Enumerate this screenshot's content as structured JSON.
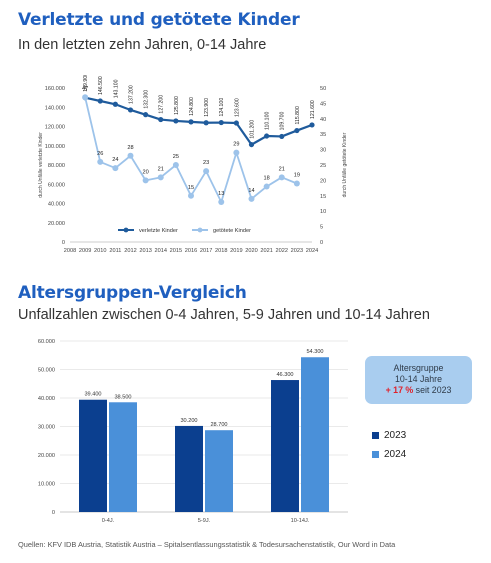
{
  "section1": {
    "title": "Verletzte und getötete Kinder",
    "subtitle": "In den letzten zehn Jahren, 0-14 Jahre"
  },
  "section2": {
    "title": "Altersgruppen-Vergleich",
    "subtitle": "Unfallzahlen zwischen 0-4 Jahren, 5-9 Jahren und 10-14 Jahren"
  },
  "infobox": {
    "line1": "Altersgruppe",
    "line2": "10-14 Jahre",
    "highlight": "+ 17 %",
    "line3_rest": " seit 2023"
  },
  "source": "Quellen: KFV IDB Austria, Statistik Austria – Spitalsentlassungsstatistik & Todesursachenstatistik, Our Word in Data",
  "chart_data": [
    {
      "type": "line",
      "x": [
        2009,
        2010,
        2011,
        2012,
        2013,
        2014,
        2015,
        2016,
        2017,
        2018,
        2019,
        2020,
        2021,
        2022,
        2023,
        2024
      ],
      "xticks": [
        "2008",
        "2009",
        "2010",
        "2011",
        "2012",
        "2013",
        "2014",
        "2015",
        "2016",
        "2017",
        "2018",
        "2019",
        "2020",
        "2021",
        "2022",
        "2023",
        "2024"
      ],
      "xlim": [
        2008,
        2024
      ],
      "ylabel_left": "durch Unfälle verletzte Kinder",
      "ylabel_right": "durch Unfälle getötete Kinder",
      "ylim_left": [
        0,
        160000
      ],
      "yticks_left": [
        "0",
        "20.000",
        "40.000",
        "60.000",
        "80.000",
        "100.000",
        "120.000",
        "140.000",
        "160.000"
      ],
      "ylim_right": [
        0,
        50
      ],
      "yticks_right": [
        "0",
        "5",
        "10",
        "15",
        "20",
        "25",
        "30",
        "35",
        "40",
        "45",
        "50"
      ],
      "series": [
        {
          "name": "verletzte Kinder",
          "axis": "left",
          "color": "#1f5b9c",
          "values": [
            149900,
            146500,
            143100,
            137200,
            132300,
            127200,
            125800,
            124800,
            123900,
            124100,
            123600,
            101200,
            110100,
            109700,
            115800,
            121600
          ],
          "labels": [
            "149.900",
            "146.500",
            "143.100",
            "137.200",
            "132.300",
            "127.200",
            "125.800",
            "124.800",
            "123.900",
            "124.100",
            "123.600",
            "101.200",
            "110.100",
            "109.700",
            "115.800",
            "121.600"
          ]
        },
        {
          "name": "getötete Kinder",
          "axis": "right",
          "color": "#9dc3ea",
          "values": [
            47,
            26,
            24,
            28,
            20,
            21,
            25,
            15,
            23,
            13,
            29,
            14,
            18,
            21,
            19,
            null
          ],
          "labels": [
            "47",
            "26",
            "24",
            "28",
            "20",
            "21",
            "25",
            "15",
            "23",
            "13",
            "29",
            "14",
            "18",
            "21",
            "19",
            ""
          ]
        }
      ],
      "legend": "bottom"
    },
    {
      "type": "bar",
      "categories": [
        "0-4J.",
        "5-9J.",
        "10-14J."
      ],
      "ylim": [
        0,
        60000
      ],
      "yticks": [
        "0",
        "10.000",
        "20.000",
        "30.000",
        "40.000",
        "50.000",
        "60.000"
      ],
      "series": [
        {
          "name": "2023",
          "color": "#0b3f8f",
          "values": [
            39400,
            30200,
            46300
          ],
          "labels": [
            "39.400",
            "30.200",
            "46.300"
          ]
        },
        {
          "name": "2024",
          "color": "#4a90d9",
          "values": [
            38500,
            28700,
            54300
          ],
          "labels": [
            "38.500",
            "28.700",
            "54.300"
          ]
        }
      ],
      "legend": "right"
    }
  ]
}
